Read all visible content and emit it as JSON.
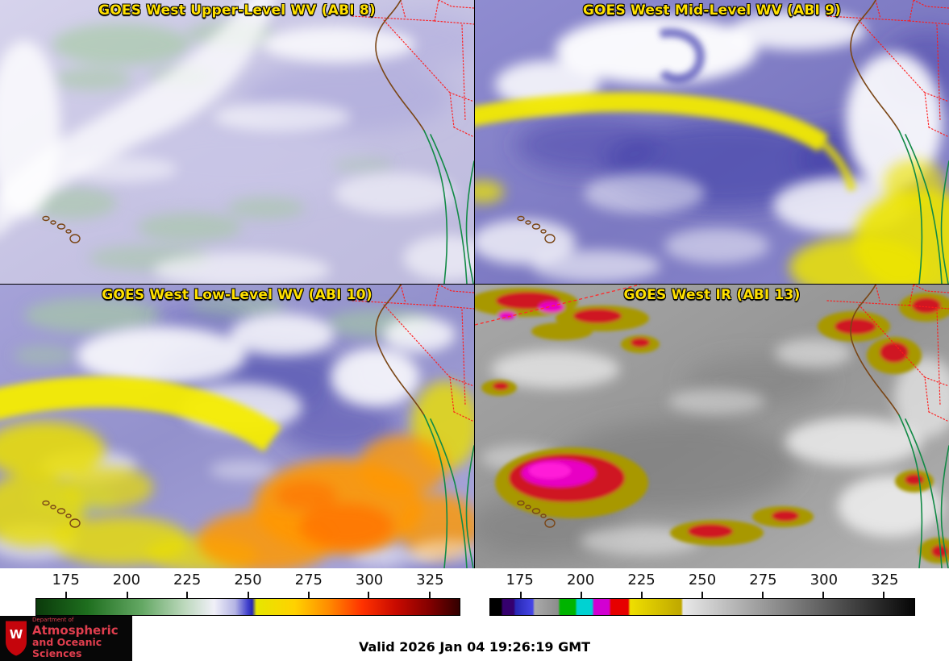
{
  "panels": [
    {
      "id": "upper-wv",
      "title": "GOES West Upper-Level WV (ABI 8)"
    },
    {
      "id": "mid-wv",
      "title": "GOES West Mid-Level WV (ABI 9)"
    },
    {
      "id": "low-wv",
      "title": "GOES West Low-Level WV (ABI 10)"
    },
    {
      "id": "ir",
      "title": "GOES West IR (ABI 13)"
    }
  ],
  "colorbars": {
    "wv": {
      "ticks": [
        "175",
        "200",
        "225",
        "250",
        "275",
        "300",
        "325"
      ],
      "stops": [
        {
          "c": "#0b3a0b",
          "p": 0
        },
        {
          "c": "#1e6e1e",
          "p": 12
        },
        {
          "c": "#64a864",
          "p": 25
        },
        {
          "c": "#bcd8bc",
          "p": 35
        },
        {
          "c": "#f0f0f8",
          "p": 42
        },
        {
          "c": "#b4b4e4",
          "p": 47
        },
        {
          "c": "#4040cc",
          "p": 50
        },
        {
          "c": "#2828b0",
          "p": 51
        },
        {
          "c": "#e6e600",
          "p": 52
        },
        {
          "c": "#ffd200",
          "p": 61
        },
        {
          "c": "#ff8c00",
          "p": 69
        },
        {
          "c": "#ff3200",
          "p": 77
        },
        {
          "c": "#c80a00",
          "p": 85
        },
        {
          "c": "#820000",
          "p": 93
        },
        {
          "c": "#320000",
          "p": 100
        }
      ]
    },
    "ir": {
      "ticks": [
        "175",
        "200",
        "225",
        "250",
        "275",
        "300",
        "325"
      ],
      "stops": [
        {
          "c": "#000000",
          "p": 0
        },
        {
          "c": "#000000",
          "p": 2.5
        },
        {
          "c": "#35006e",
          "p": 3
        },
        {
          "c": "#35006e",
          "p": 5.5
        },
        {
          "c": "#2828b4",
          "p": 6
        },
        {
          "c": "#4646e6",
          "p": 10
        },
        {
          "c": "#aaaaaa",
          "p": 10.5
        },
        {
          "c": "#8c8c8c",
          "p": 16
        },
        {
          "c": "#00b400",
          "p": 16.5
        },
        {
          "c": "#00b400",
          "p": 20
        },
        {
          "c": "#00d2d2",
          "p": 20.5
        },
        {
          "c": "#00d2d2",
          "p": 24
        },
        {
          "c": "#d200d2",
          "p": 24.5
        },
        {
          "c": "#d200d2",
          "p": 28
        },
        {
          "c": "#e60000",
          "p": 28.5
        },
        {
          "c": "#e60000",
          "p": 32.5
        },
        {
          "c": "#efdf00",
          "p": 33
        },
        {
          "c": "#bfa800",
          "p": 45
        },
        {
          "c": "#e8e8e8",
          "p": 45.5
        },
        {
          "c": "#060606",
          "p": 100
        }
      ]
    }
  },
  "footer": {
    "valid_time": "Valid 2026 Jan 04 19:26:19 GMT"
  },
  "logo": {
    "crest_letter": "W",
    "dept_line": "Department of",
    "line1": "Atmospheric",
    "line2": "and Oceanic Sciences",
    "brand_red": "#c5050c",
    "text_red": "#e03e4e"
  }
}
